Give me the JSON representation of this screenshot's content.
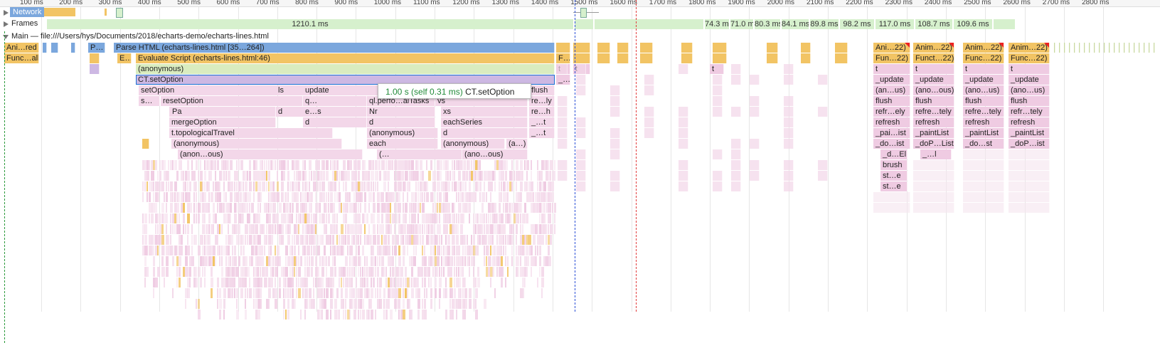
{
  "ruler": {
    "ticks": [
      "100 ms",
      "200 ms",
      "300 ms",
      "400 ms",
      "500 ms",
      "600 ms",
      "700 ms",
      "800 ms",
      "900 ms",
      "1000 ms",
      "1100 ms",
      "1200 ms",
      "1300 ms",
      "1400 ms",
      "1500 ms",
      "1600 ms",
      "1700 ms",
      "1800 ms",
      "1900 ms",
      "2000 ms",
      "2100 ms",
      "2200 ms",
      "2300 ms",
      "2400 ms",
      "2500 ms",
      "2600 ms",
      "2700 ms",
      "2800 ms"
    ]
  },
  "tracks": {
    "network_label": "Network",
    "frames_label": "Frames",
    "main_label": "Main — file:///Users/hys/Documents/2018/echarts-demo/echarts-lines.html"
  },
  "frames": [
    "1210.1 ms",
    "74.3 ms",
    "71.0 ms",
    "80.3 ms",
    "84.1 ms",
    "89.8 ms",
    "98.2 ms",
    "117.0 ms",
    "108.7 ms",
    "109.6 ms"
  ],
  "flame": {
    "row0": {
      "ani": "Ani…red",
      "p": "P…",
      "parse": "Parse HTML (echarts-lines.html [35…264])"
    },
    "row1": {
      "func": "Func…all",
      "e": "E…",
      "evaluate": "Evaluate Script (echarts-lines.html:46)",
      "f": "F…"
    },
    "row2": {
      "anon": "(anonymous)",
      "t1": "t",
      "t2": "t",
      "t3": "t"
    },
    "row3": {
      "setoption": "CT.setOption",
      "dots": "_…"
    },
    "row4": {
      "setoption": "setOption",
      "ls": "ls",
      "update": "update",
      "flush": "flush"
    },
    "row5": {
      "s": "s…",
      "reset": "resetOption",
      "q": "q…",
      "perf": "ql.perfo…alTasks",
      "vs": "vs",
      "rely": "re…ly"
    },
    "row6": {
      "pa": "Pa",
      "d": "d",
      "es": "e…s",
      "nr": "Nr",
      "xs": "xs",
      "reh": "re…h"
    },
    "row7": {
      "merge": "mergeOption",
      "d": "d",
      "d2": "d",
      "each": "eachSeries",
      "t": "_…t"
    },
    "row8": {
      "topo": "t.topologicalTravel",
      "anon": "(anonymous)",
      "d": "d",
      "t": "_…t"
    },
    "row9": {
      "anon": "(anonymous)",
      "each": "each",
      "anon2": "(anonymous)",
      "a": "(a…)"
    },
    "row10": {
      "anonous": "(anon…ous)",
      "dots": "(…",
      "anonous2": "(ano…ous)"
    }
  },
  "right_columns": [
    {
      "r0": "Ani…22)",
      "r1": "Fun…22)",
      "r2": "t",
      "r3": "_update",
      "r4": "(an…us)",
      "r5": "flush",
      "r6": "refr…ely",
      "r7": "refresh",
      "r8": "_pai…ist",
      "r9": "_do…ist",
      "r10": "_d…El",
      "r11": "brush",
      "r12": "st…e",
      "r13": "st…e"
    },
    {
      "r0": "Anim…22)",
      "r1": "Funct…22)",
      "r2": "t",
      "r3": "_update",
      "r4": "(ano…ous)",
      "r5": "flush",
      "r6": "refre…tely",
      "r7": "refresh",
      "r8": "_paintList",
      "r9": "_doP…List",
      "r10": "_…l"
    },
    {
      "r0": "Anim…22)",
      "r1": "Func…22)",
      "r2": "t",
      "r3": "_update",
      "r4": "(ano…us)",
      "r5": "flush",
      "r6": "refre…tely",
      "r7": "refresh",
      "r8": "_paintList",
      "r9": "_do…st"
    },
    {
      "r0": "Anim…22)",
      "r1": "Func…22)",
      "r2": "t",
      "r3": "_update",
      "r4": "(ano…us)",
      "r5": "flush",
      "r6": "refr…tely",
      "r7": "refresh",
      "r8": "_paintList",
      "r9": "_doP…ist"
    }
  ],
  "tooltip": {
    "duration": "1.00 s (self 0.31 ms)",
    "name": "CT.setOption"
  },
  "colors": {
    "script": "#f2c464",
    "parse": "#7ba7dd",
    "paint": "#efcbe2",
    "frame": "#d6f0cd",
    "marker_blue": "#2b4fd6",
    "marker_red": "#e23b3b"
  }
}
